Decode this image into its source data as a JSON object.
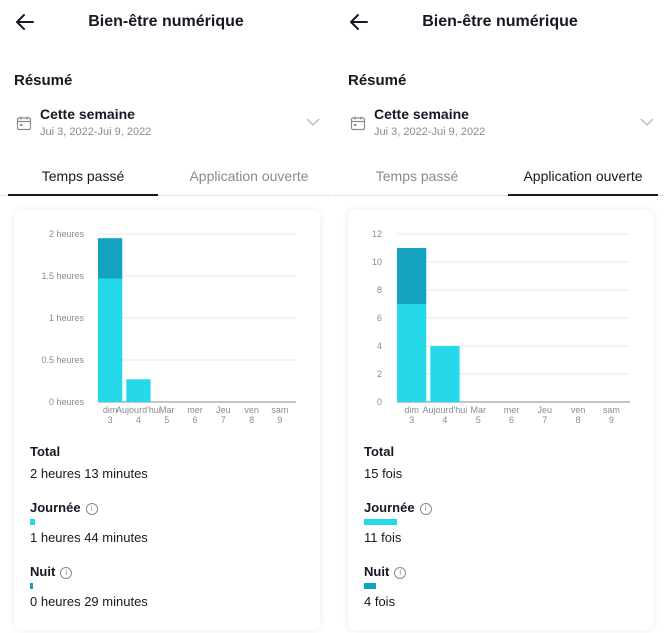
{
  "colors": {
    "day": "#25d9ea",
    "night": "#14a2c0",
    "grid": "#e8e8ea",
    "axis": "#8a8b91"
  },
  "left": {
    "header": {
      "title": "Bien-être numérique"
    },
    "summary_label": "Résumé",
    "week": {
      "label": "Cette semaine",
      "range": "Jui 3, 2022-Jui 9, 2022"
    },
    "tabs": [
      {
        "label": "Temps passé"
      },
      {
        "label": "Application ouverte"
      }
    ],
    "stats": {
      "total_label": "Total",
      "total_value": "2 heures 13 minutes",
      "day_label": "Journée",
      "day_value": "1 heures 44 minutes",
      "night_label": "Nuit",
      "night_value": "0 heures 29 minutes"
    },
    "chart_data": {
      "type": "bar",
      "categories": [
        "dim 3",
        "Aujourd'hui 4",
        "Mar 5",
        "mer 6",
        "Jeu 7",
        "ven 8",
        "sam 9"
      ],
      "x_labels": [
        [
          "dim",
          "3"
        ],
        [
          "Aujourd'hui",
          "4"
        ],
        [
          "Mar",
          "5"
        ],
        [
          "mer",
          "6"
        ],
        [
          "Jeu",
          "7"
        ],
        [
          "ven",
          "8"
        ],
        [
          "sam",
          "9"
        ]
      ],
      "y_ticks": [
        "0 heures",
        "0.5 heures",
        "1 heures",
        "1.5 heures",
        "2 heures"
      ],
      "ylim": [
        0,
        2
      ],
      "stacked": true,
      "series": [
        {
          "key": "day",
          "values": [
            1.47,
            0.27,
            0,
            0,
            0,
            0,
            0
          ]
        },
        {
          "key": "night",
          "values": [
            0.48,
            0,
            0,
            0,
            0,
            0,
            0
          ]
        }
      ],
      "grid": true
    }
  },
  "right": {
    "header": {
      "title": "Bien-être numérique"
    },
    "summary_label": "Résumé",
    "week": {
      "label": "Cette semaine",
      "range": "Jui 3, 2022-Jui 9, 2022"
    },
    "tabs": [
      {
        "label": "Temps passé"
      },
      {
        "label": "Application ouverte"
      }
    ],
    "stats": {
      "total_label": "Total",
      "total_value": "15 fois",
      "day_label": "Journée",
      "day_value": "11 fois",
      "night_label": "Nuit",
      "night_value": "4 fois"
    },
    "chart_data": {
      "type": "bar",
      "categories": [
        "dim 3",
        "Aujourd'hui 4",
        "Mar 5",
        "mer 6",
        "Jeu 7",
        "ven 8",
        "sam 9"
      ],
      "x_labels": [
        [
          "dim",
          "3"
        ],
        [
          "Aujourd'hui",
          "4"
        ],
        [
          "Mar",
          "5"
        ],
        [
          "mer",
          "6"
        ],
        [
          "Jeu",
          "7"
        ],
        [
          "ven",
          "8"
        ],
        [
          "sam",
          "9"
        ]
      ],
      "y_ticks": [
        "0",
        "2",
        "4",
        "6",
        "8",
        "10",
        "12"
      ],
      "ylim": [
        0,
        12
      ],
      "stacked": true,
      "series": [
        {
          "key": "day",
          "values": [
            7,
            4,
            0,
            0,
            0,
            0,
            0
          ]
        },
        {
          "key": "night",
          "values": [
            4,
            0,
            0,
            0,
            0,
            0,
            0
          ]
        }
      ],
      "grid": true
    }
  }
}
